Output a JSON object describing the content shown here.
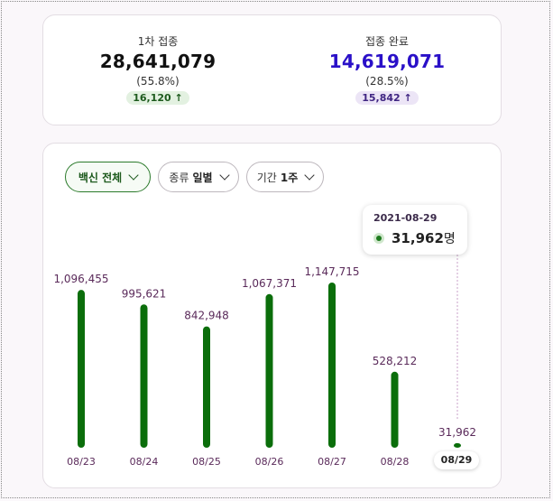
{
  "summary": {
    "first_dose": {
      "label": "1차 접종",
      "value": "28,641,079",
      "percent": "(55.8%)",
      "delta": "16,120 ↑"
    },
    "fully_vaccinated": {
      "label": "접종 완료",
      "value": "14,619,071",
      "percent": "(28.5%)",
      "delta": "15,842 ↑"
    }
  },
  "filters": {
    "vaccine": {
      "label": "백신 전체"
    },
    "type": {
      "prefix": "종류",
      "value": "일별"
    },
    "period": {
      "prefix": "기간",
      "value": "1주"
    }
  },
  "colors": {
    "bar": "#0b6e0b",
    "first_value": "#111111",
    "complete_value": "#2a10c8",
    "bar_label": "#5a2a5a"
  },
  "tooltip": {
    "date": "2021-08-29",
    "value": "31,962",
    "unit": "명"
  },
  "selected_label": "08/29",
  "chart_data": {
    "type": "bar",
    "categories": [
      "08/23",
      "08/24",
      "08/25",
      "08/26",
      "08/27",
      "08/28",
      "08/29"
    ],
    "values": [
      1096455,
      995621,
      842948,
      1067371,
      1147715,
      528212,
      31962
    ],
    "value_labels": [
      "1,096,455",
      "995,621",
      "842,948",
      "1,067,371",
      "1,147,715",
      "528,212",
      "31,962"
    ],
    "selected_index": 6,
    "ylim": [
      0,
      1147715
    ],
    "grid": false
  }
}
